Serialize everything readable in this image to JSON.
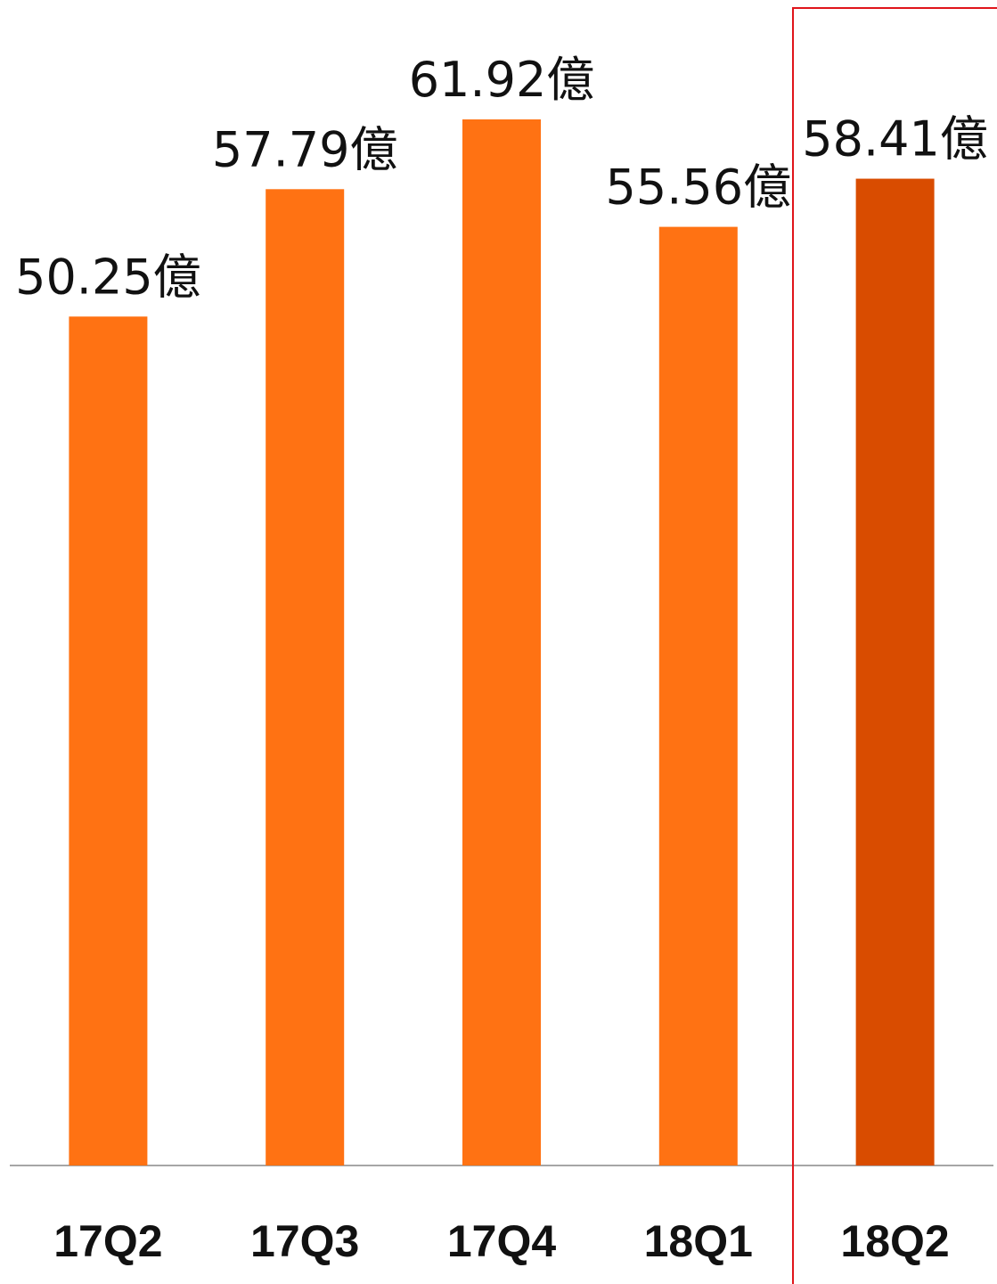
{
  "chart_data": {
    "type": "bar",
    "categories": [
      "17Q2",
      "17Q3",
      "17Q4",
      "18Q1",
      "18Q2"
    ],
    "values": [
      50.25,
      57.79,
      61.92,
      55.56,
      58.41
    ],
    "data_labels": [
      "50.25億",
      "57.79億",
      "61.92億",
      "55.56億",
      "58.41億"
    ],
    "title": "",
    "xlabel": "",
    "ylabel": "",
    "grid": false,
    "legend": "none",
    "highlight_index": 4,
    "colors": {
      "bar": "#FF7213",
      "highlight_bar": "#D94C00",
      "highlight_box": "#E0151B",
      "baseline": "#A6A6A6"
    }
  }
}
